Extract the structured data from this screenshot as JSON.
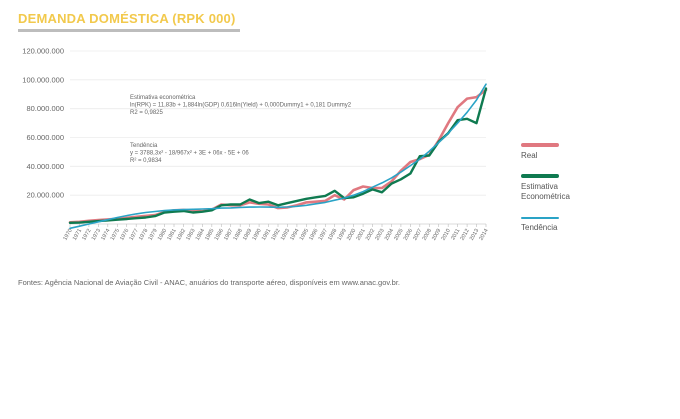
{
  "header": {
    "title": "DEMANDA DOMÉSTICA (RPK 000)"
  },
  "chart_data": {
    "type": "line",
    "x": [
      1970,
      1971,
      1972,
      1973,
      1974,
      1975,
      1976,
      1977,
      1978,
      1979,
      1980,
      1981,
      1982,
      1983,
      1984,
      1985,
      1986,
      1987,
      1988,
      1989,
      1990,
      1991,
      1992,
      1993,
      1994,
      1995,
      1996,
      1997,
      1998,
      1999,
      2000,
      2001,
      2002,
      2003,
      2004,
      2005,
      2006,
      2007,
      2008,
      2009,
      2010,
      2011,
      2012,
      2013,
      2014
    ],
    "ylim": [
      0,
      120000000
    ],
    "yticks": [
      0,
      20000000,
      40000000,
      60000000,
      80000000,
      100000000,
      120000000
    ],
    "ytick_labels": [
      "",
      "20.000.000",
      "40.000.000",
      "60.000.000",
      "80.000.000",
      "100.000.000",
      "120.000.000"
    ],
    "grid": true,
    "legend_position": "right",
    "series": [
      {
        "name": "Real",
        "color": "#e07880",
        "values": [
          1200000,
          1500000,
          2200000,
          2700000,
          3200000,
          3600000,
          4200000,
          5000000,
          5600000,
          6200000,
          8300000,
          9500000,
          9800000,
          9200000,
          8900000,
          10000000,
          13500000,
          13000000,
          13000000,
          15000000,
          14000000,
          13500000,
          11000000,
          11500000,
          13000000,
          15000000,
          15500000,
          16000000,
          20000000,
          17000000,
          23500000,
          26000000,
          25000000,
          25000000,
          29500000,
          37000000,
          43000000,
          45000000,
          48000000,
          58000000,
          70000000,
          81000000,
          87000000,
          88000000,
          93000000
        ]
      },
      {
        "name": "Estimativa Econométrica",
        "color": "#0f7a50",
        "values": [
          800000,
          1000000,
          1500000,
          2000000,
          2500000,
          3000000,
          3500000,
          4000000,
          4500000,
          5500000,
          8000000,
          8500000,
          9000000,
          8000000,
          8500000,
          9500000,
          13000000,
          13500000,
          13500000,
          17000000,
          14500000,
          15500000,
          13000000,
          14500000,
          16000000,
          17500000,
          18500000,
          19500000,
          23000000,
          18000000,
          18500000,
          21000000,
          24000000,
          22000000,
          28000000,
          31000000,
          35000000,
          47000000,
          47500000,
          57000000,
          63000000,
          72000000,
          73000000,
          70000000,
          94000000
        ]
      },
      {
        "name": "Tendência",
        "color": "#2aa3c6",
        "values": [
          -3000000,
          -1500000,
          0,
          1500000,
          3000000,
          4500000,
          5800000,
          7000000,
          8000000,
          8700000,
          9300000,
          9800000,
          10000000,
          10200000,
          10400000,
          10600000,
          11000000,
          11200000,
          11500000,
          11700000,
          11800000,
          11700000,
          11600000,
          11800000,
          12300000,
          13000000,
          14000000,
          15000000,
          16500000,
          18000000,
          20000000,
          22500000,
          25500000,
          28500000,
          32000000,
          36000000,
          40500000,
          45000000,
          50500000,
          56500000,
          63000000,
          70000000,
          77500000,
          86000000,
          97000000
        ]
      }
    ],
    "annotations": [
      {
        "lines": [
          "Estimativa econométrica",
          "ln(RPK) = 11,83b + 1,884ln(GDP)  0,616ln(Yield) + 0,000Dummy1 + 0,181 Dummy2",
          "R2 = 0,9825"
        ]
      },
      {
        "lines": [
          "Tendência",
          "y = 3788,3x² - 18/967x² + 3E + 06x - 5E + 06",
          "R² = 0,9834"
        ]
      }
    ]
  },
  "source": "Fontes: Agência Nacional de Aviação Civil - ANAC, anuários do transporte aéreo, disponíveis em www.anac.gov.br."
}
